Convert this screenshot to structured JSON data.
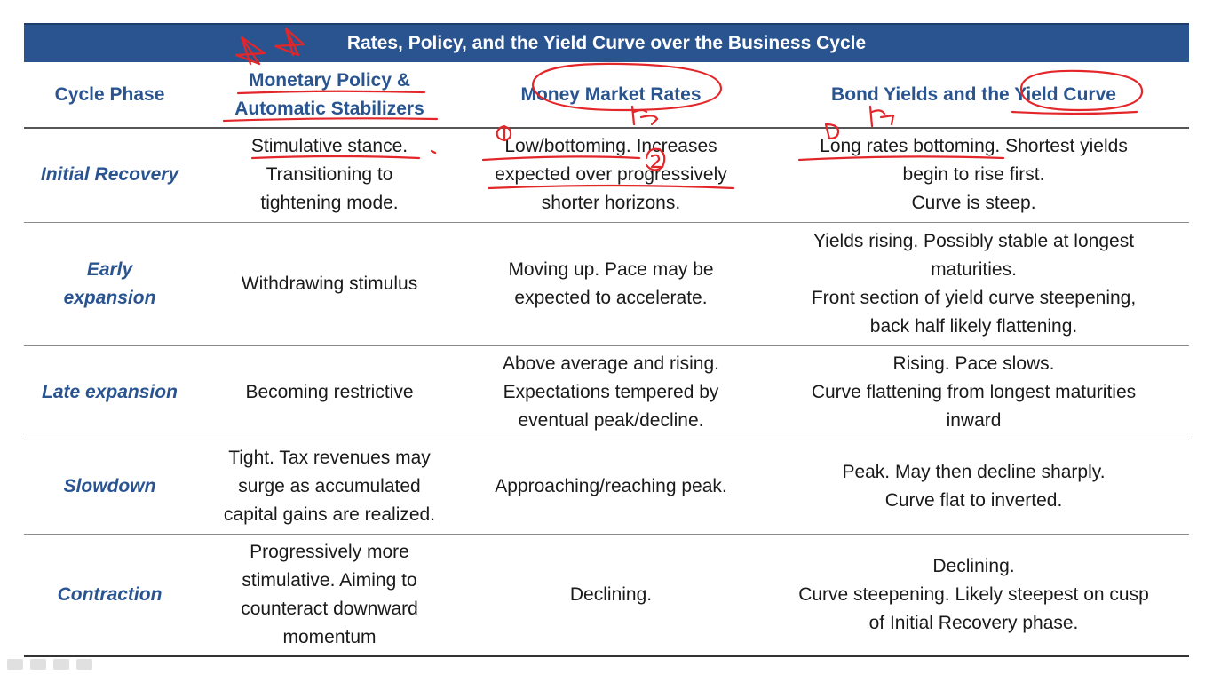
{
  "title": "Rates, Policy, and the Yield Curve over the Business Cycle",
  "colors": {
    "header_bar": "#2a5490",
    "header_text": "#2a5490",
    "annotation_ink": "#e3262a"
  },
  "columns": [
    {
      "lines": [
        "Cycle Phase"
      ]
    },
    {
      "lines": [
        "Monetary Policy &",
        "Automatic Stabilizers"
      ]
    },
    {
      "lines": [
        "Money Market Rates"
      ]
    },
    {
      "lines": [
        "Bond Yields and the Yield Curve"
      ]
    }
  ],
  "rows": [
    {
      "phase": [
        "Initial Recovery"
      ],
      "policy": [
        "Stimulative stance.",
        "Transitioning to",
        "tightening mode."
      ],
      "money": [
        "Low/bottoming. Increases",
        "expected over progressively",
        "shorter horizons."
      ],
      "bonds": [
        "Long rates bottoming. Shortest yields",
        "begin to rise first.",
        "Curve is steep."
      ]
    },
    {
      "phase": [
        "Early",
        "expansion"
      ],
      "policy": [
        "Withdrawing stimulus"
      ],
      "money": [
        "Moving up. Pace may be",
        "expected to accelerate."
      ],
      "bonds": [
        "Yields rising. Possibly stable at longest",
        "maturities.",
        "Front section of yield curve steepening,",
        "back half likely flattening."
      ]
    },
    {
      "phase": [
        "Late expansion"
      ],
      "policy": [
        "Becoming restrictive"
      ],
      "money": [
        "Above average and rising.",
        "Expectations tempered by",
        "eventual peak/decline."
      ],
      "bonds": [
        "Rising. Pace slows.",
        "Curve flattening from longest maturities",
        "inward"
      ]
    },
    {
      "phase": [
        "Slowdown"
      ],
      "policy": [
        "Tight. Tax revenues may",
        "surge as accumulated",
        "capital gains are realized."
      ],
      "money": [
        "Approaching/reaching peak."
      ],
      "bonds": [
        "Peak. May then decline sharply.",
        "Curve flat to inverted."
      ]
    },
    {
      "phase": [
        "Contraction"
      ],
      "policy": [
        "Progressively more",
        "stimulative. Aiming to",
        "counteract downward",
        "momentum"
      ],
      "money": [
        "Declining."
      ],
      "bonds": [
        "Declining.",
        "Curve steepening. Likely steepest on cusp",
        "of Initial Recovery phase."
      ]
    }
  ]
}
